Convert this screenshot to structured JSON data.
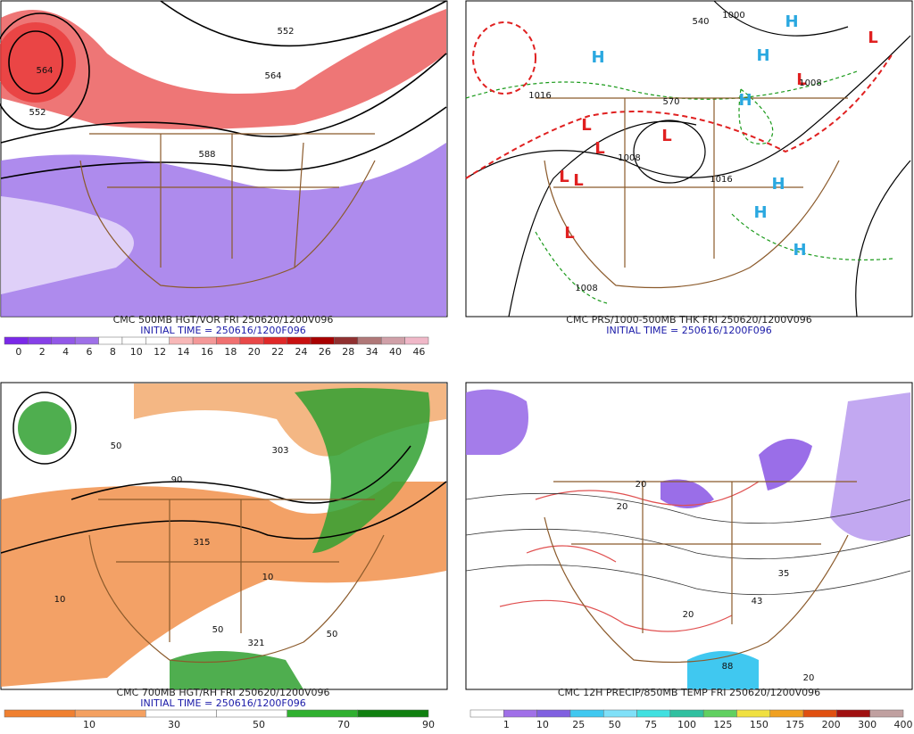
{
  "panels": [
    {
      "title": "CMC 500MB HGT/VOR FRI 250620/1200V096",
      "initial_time": "INITIAL TIME = 250616/1200F096",
      "labels": [
        "552",
        "564",
        "552",
        "564",
        "588"
      ],
      "colorbar": {
        "labels": [
          "0",
          "2",
          "4",
          "6",
          "8",
          "10",
          "12",
          "14",
          "16",
          "18",
          "20",
          "22",
          "24",
          "26",
          "28",
          "34",
          "40",
          "46"
        ],
        "colors": [
          "#7a28e8",
          "#8640e8",
          "#9258e8",
          "#9e70e8",
          "#ffffff",
          "#ffffff",
          "#ffffff",
          "#f8b8b8",
          "#f49898",
          "#f07070",
          "#e84848",
          "#e02828",
          "#c81010",
          "#a80000",
          "#903030",
          "#b07878",
          "#d0a0a8",
          "#f0b8c8"
        ]
      }
    },
    {
      "title": "CMC PRS/1000-500MB THK FRI 250620/1200V096",
      "initial_time": "INITIAL TIME = 250616/1200F096",
      "labels": [
        "H",
        "H",
        "H",
        "H",
        "H",
        "H",
        "H",
        "L",
        "L",
        "L",
        "L",
        "L",
        "L",
        "L",
        "L",
        "1016",
        "1008",
        "1016",
        "1008",
        "1000",
        "540",
        "570",
        "1008"
      ]
    },
    {
      "title": "CMC 700MB HGT/RH FRI 250620/1200V096",
      "initial_time": "INITIAL TIME = 250616/1200F096",
      "labels": [
        "303",
        "315",
        "321",
        "10",
        "50",
        "50",
        "90",
        "10",
        "50"
      ],
      "colorbar": {
        "labels": [
          "10",
          "30",
          "50",
          "70",
          "90"
        ],
        "colors": [
          "#f08030",
          "#f4a060",
          "#ffffff",
          "#ffffff",
          "#30b030",
          "#108010"
        ]
      }
    },
    {
      "title": "CMC 12H PRECIP/850MB TEMP FRI 250620/1200V096",
      "labels": [
        "20",
        "20",
        "20",
        "88",
        "35",
        "43",
        "20"
      ],
      "colorbar": {
        "labels": [
          "1",
          "10",
          "25",
          "50",
          "75",
          "100",
          "125",
          "150",
          "175",
          "200",
          "300",
          "400"
        ],
        "colors": [
          "#ffffff",
          "#a070e8",
          "#8060e0",
          "#40c8f0",
          "#80e0f8",
          "#40e0e0",
          "#30c0a0",
          "#60d060",
          "#f0e040",
          "#f0a020",
          "#e05010",
          "#a01010",
          "#c0a0a0"
        ]
      }
    }
  ]
}
